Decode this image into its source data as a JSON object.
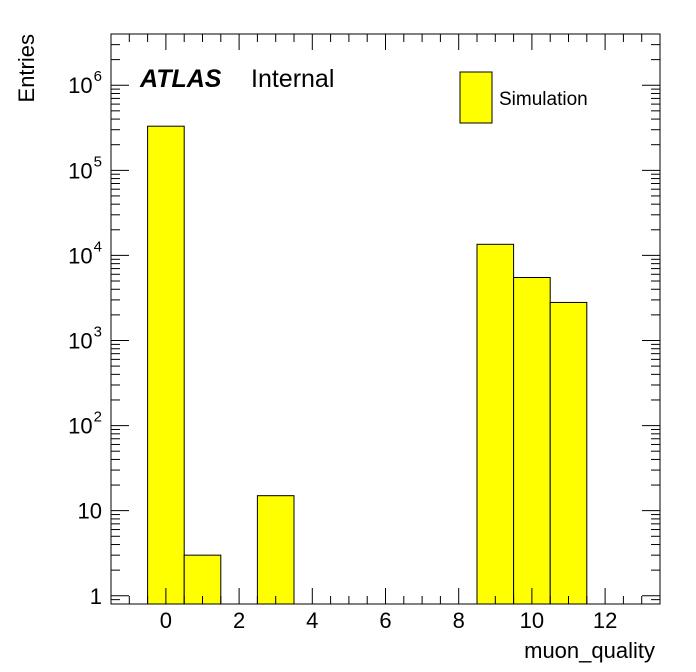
{
  "chart_data": {
    "type": "bar",
    "title": "",
    "xlabel": "muon_quality",
    "ylabel": "Entries",
    "yscale": "log",
    "xlim": [
      -1.5,
      13.5
    ],
    "ylim": [
      0.8,
      4000000
    ],
    "x_ticks": [
      0,
      2,
      4,
      6,
      8,
      10,
      12
    ],
    "y_ticks": [
      {
        "value": 1,
        "label": "1",
        "sup": ""
      },
      {
        "value": 10,
        "label": "10",
        "sup": ""
      },
      {
        "value": 100,
        "label": "10",
        "sup": "2"
      },
      {
        "value": 1000,
        "label": "10",
        "sup": "3"
      },
      {
        "value": 10000,
        "label": "10",
        "sup": "4"
      },
      {
        "value": 100000,
        "label": "10",
        "sup": "5"
      },
      {
        "value": 1000000,
        "label": "10",
        "sup": "6"
      }
    ],
    "bin_width": 1,
    "bins": [
      {
        "center": 0,
        "value": 330000
      },
      {
        "center": 1,
        "value": 3
      },
      {
        "center": 3,
        "value": 15
      },
      {
        "center": 9,
        "value": 13500
      },
      {
        "center": 10,
        "value": 5500
      },
      {
        "center": 11,
        "value": 2800
      }
    ],
    "fill_color": "#ffff00",
    "line_color": "#000000",
    "legend": {
      "position": "top-right",
      "entries": [
        "Simulation"
      ]
    },
    "annotation": {
      "bold": "ATLAS",
      "normal": "Internal"
    },
    "grid": false
  }
}
